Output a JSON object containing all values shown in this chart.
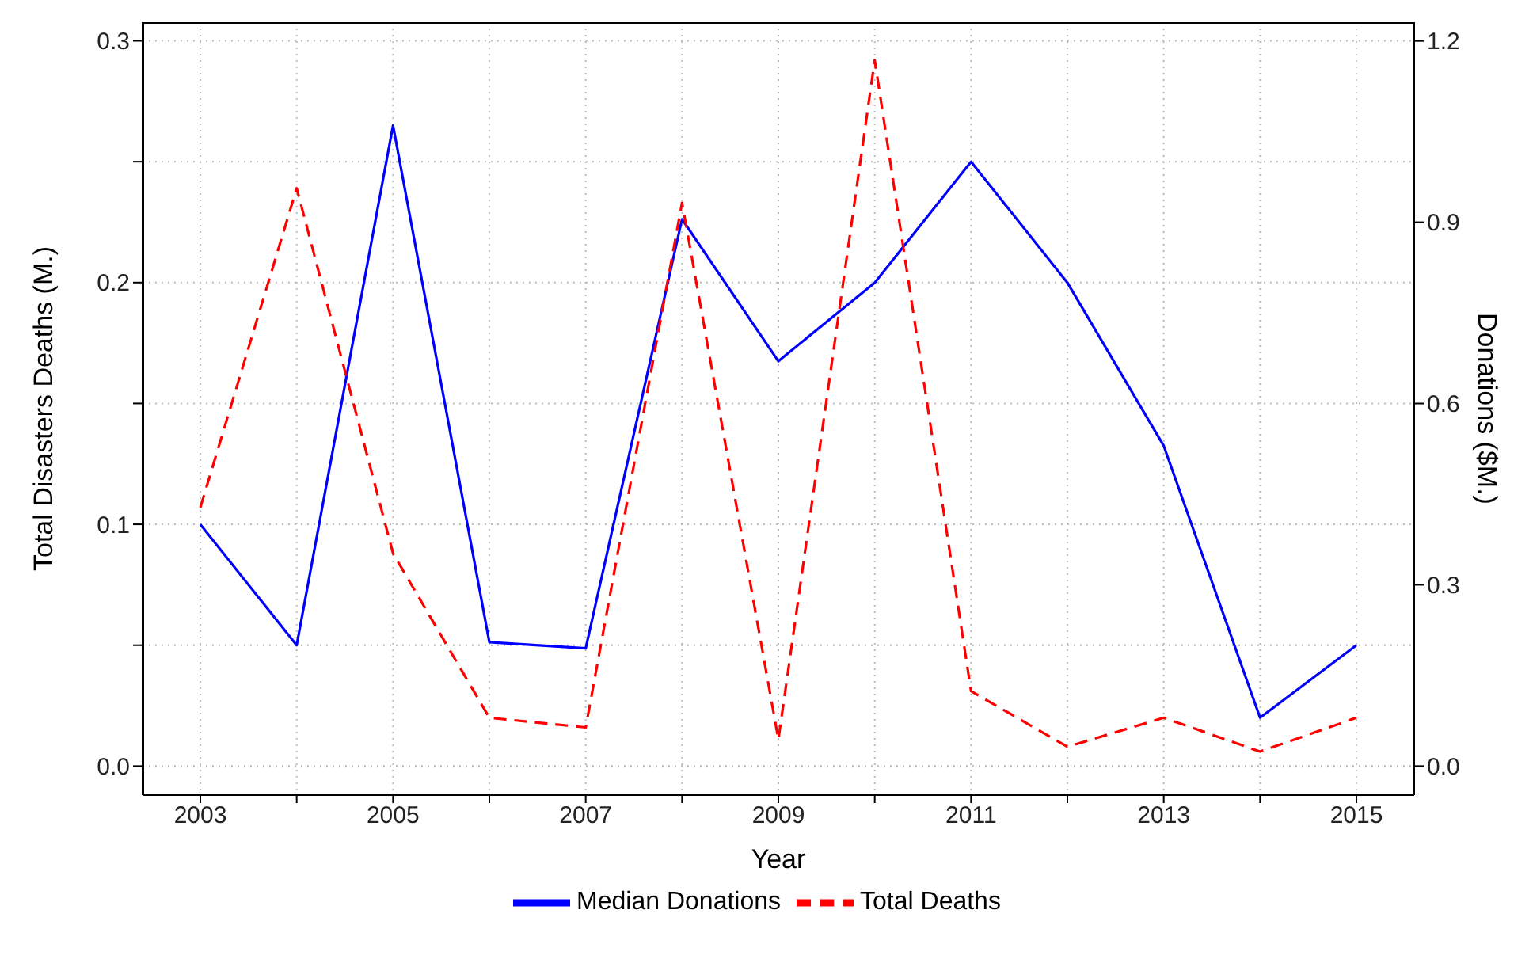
{
  "chart_data": {
    "type": "line",
    "xlabel": "Year",
    "ylabel": "Total Disasters Deaths (M.)",
    "y2label": "Donations ($M.)",
    "x": [
      2003,
      2004,
      2005,
      2006,
      2007,
      2008,
      2009,
      2010,
      2011,
      2012,
      2013,
      2014,
      2015
    ],
    "series": [
      {
        "name": "Median Donations",
        "color": "#0000ff",
        "axis": "y2",
        "line_style": "solid",
        "values": [
          0.4,
          0.2,
          1.06,
          0.205,
          0.195,
          0.905,
          0.67,
          0.8,
          1.0,
          0.8,
          0.53,
          0.08,
          0.2
        ]
      },
      {
        "name": "Total Deaths",
        "color": "#ff0000",
        "line_style": "dashed",
        "values": [
          0.107,
          0.239,
          0.088,
          0.02,
          0.016,
          0.233,
          0.011,
          0.292,
          0.031,
          0.008,
          0.02,
          0.006,
          0.02
        ]
      }
    ],
    "xlim": [
      2002.4,
      2015.6
    ],
    "xticks": [
      2003,
      {
        "value": 2004,
        "label": null
      },
      2005,
      {
        "value": 2006,
        "label": null
      },
      2007,
      {
        "value": 2008,
        "label": null
      },
      2009,
      {
        "value": 2010,
        "label": null
      },
      2011,
      {
        "value": 2012,
        "label": null
      },
      2013,
      {
        "value": 2014,
        "label": null
      },
      2015
    ],
    "ylim": [
      -0.012,
      0.3077
    ],
    "yticks": [
      {
        "value": 0,
        "label": "0.0"
      },
      {
        "value": 0.05,
        "label": null
      },
      0.1,
      {
        "value": 0.15,
        "label": null
      },
      0.2,
      {
        "value": 0.25,
        "label": null
      },
      0.3
    ],
    "y2lim": [
      -0.048,
      1.231
    ],
    "y2ticks": [
      {
        "value": 0,
        "label": "0.0"
      },
      0.3,
      0.6,
      0.9,
      1.2
    ],
    "grid": true,
    "legend": "bottom",
    "marker": "none"
  }
}
